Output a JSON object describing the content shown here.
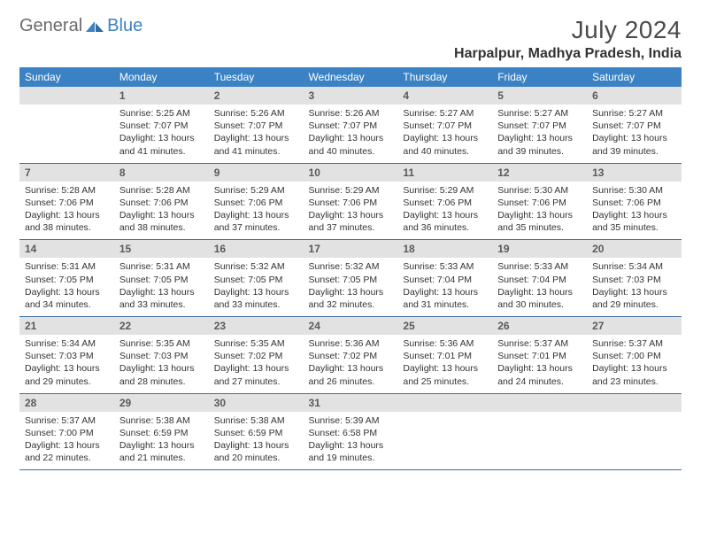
{
  "brand": {
    "part1": "General",
    "part2": "Blue"
  },
  "title": "July 2024",
  "location": "Harpalpur, Madhya Pradesh, India",
  "colors": {
    "header_bg": "#3b82c4",
    "header_text": "#ffffff",
    "daynum_bg": "#e2e2e2",
    "daynum_text": "#5a5a5a",
    "body_text": "#333333",
    "rule": "#3b6fa0",
    "logo_gray": "#6b6b6b",
    "logo_blue": "#3b82c4"
  },
  "weekdays": [
    "Sunday",
    "Monday",
    "Tuesday",
    "Wednesday",
    "Thursday",
    "Friday",
    "Saturday"
  ],
  "weeks": [
    [
      null,
      {
        "n": "1",
        "sr": "Sunrise: 5:25 AM",
        "ss": "Sunset: 7:07 PM",
        "d1": "Daylight: 13 hours",
        "d2": "and 41 minutes."
      },
      {
        "n": "2",
        "sr": "Sunrise: 5:26 AM",
        "ss": "Sunset: 7:07 PM",
        "d1": "Daylight: 13 hours",
        "d2": "and 41 minutes."
      },
      {
        "n": "3",
        "sr": "Sunrise: 5:26 AM",
        "ss": "Sunset: 7:07 PM",
        "d1": "Daylight: 13 hours",
        "d2": "and 40 minutes."
      },
      {
        "n": "4",
        "sr": "Sunrise: 5:27 AM",
        "ss": "Sunset: 7:07 PM",
        "d1": "Daylight: 13 hours",
        "d2": "and 40 minutes."
      },
      {
        "n": "5",
        "sr": "Sunrise: 5:27 AM",
        "ss": "Sunset: 7:07 PM",
        "d1": "Daylight: 13 hours",
        "d2": "and 39 minutes."
      },
      {
        "n": "6",
        "sr": "Sunrise: 5:27 AM",
        "ss": "Sunset: 7:07 PM",
        "d1": "Daylight: 13 hours",
        "d2": "and 39 minutes."
      }
    ],
    [
      {
        "n": "7",
        "sr": "Sunrise: 5:28 AM",
        "ss": "Sunset: 7:06 PM",
        "d1": "Daylight: 13 hours",
        "d2": "and 38 minutes."
      },
      {
        "n": "8",
        "sr": "Sunrise: 5:28 AM",
        "ss": "Sunset: 7:06 PM",
        "d1": "Daylight: 13 hours",
        "d2": "and 38 minutes."
      },
      {
        "n": "9",
        "sr": "Sunrise: 5:29 AM",
        "ss": "Sunset: 7:06 PM",
        "d1": "Daylight: 13 hours",
        "d2": "and 37 minutes."
      },
      {
        "n": "10",
        "sr": "Sunrise: 5:29 AM",
        "ss": "Sunset: 7:06 PM",
        "d1": "Daylight: 13 hours",
        "d2": "and 37 minutes."
      },
      {
        "n": "11",
        "sr": "Sunrise: 5:29 AM",
        "ss": "Sunset: 7:06 PM",
        "d1": "Daylight: 13 hours",
        "d2": "and 36 minutes."
      },
      {
        "n": "12",
        "sr": "Sunrise: 5:30 AM",
        "ss": "Sunset: 7:06 PM",
        "d1": "Daylight: 13 hours",
        "d2": "and 35 minutes."
      },
      {
        "n": "13",
        "sr": "Sunrise: 5:30 AM",
        "ss": "Sunset: 7:06 PM",
        "d1": "Daylight: 13 hours",
        "d2": "and 35 minutes."
      }
    ],
    [
      {
        "n": "14",
        "sr": "Sunrise: 5:31 AM",
        "ss": "Sunset: 7:05 PM",
        "d1": "Daylight: 13 hours",
        "d2": "and 34 minutes."
      },
      {
        "n": "15",
        "sr": "Sunrise: 5:31 AM",
        "ss": "Sunset: 7:05 PM",
        "d1": "Daylight: 13 hours",
        "d2": "and 33 minutes."
      },
      {
        "n": "16",
        "sr": "Sunrise: 5:32 AM",
        "ss": "Sunset: 7:05 PM",
        "d1": "Daylight: 13 hours",
        "d2": "and 33 minutes."
      },
      {
        "n": "17",
        "sr": "Sunrise: 5:32 AM",
        "ss": "Sunset: 7:05 PM",
        "d1": "Daylight: 13 hours",
        "d2": "and 32 minutes."
      },
      {
        "n": "18",
        "sr": "Sunrise: 5:33 AM",
        "ss": "Sunset: 7:04 PM",
        "d1": "Daylight: 13 hours",
        "d2": "and 31 minutes."
      },
      {
        "n": "19",
        "sr": "Sunrise: 5:33 AM",
        "ss": "Sunset: 7:04 PM",
        "d1": "Daylight: 13 hours",
        "d2": "and 30 minutes."
      },
      {
        "n": "20",
        "sr": "Sunrise: 5:34 AM",
        "ss": "Sunset: 7:03 PM",
        "d1": "Daylight: 13 hours",
        "d2": "and 29 minutes."
      }
    ],
    [
      {
        "n": "21",
        "sr": "Sunrise: 5:34 AM",
        "ss": "Sunset: 7:03 PM",
        "d1": "Daylight: 13 hours",
        "d2": "and 29 minutes."
      },
      {
        "n": "22",
        "sr": "Sunrise: 5:35 AM",
        "ss": "Sunset: 7:03 PM",
        "d1": "Daylight: 13 hours",
        "d2": "and 28 minutes."
      },
      {
        "n": "23",
        "sr": "Sunrise: 5:35 AM",
        "ss": "Sunset: 7:02 PM",
        "d1": "Daylight: 13 hours",
        "d2": "and 27 minutes."
      },
      {
        "n": "24",
        "sr": "Sunrise: 5:36 AM",
        "ss": "Sunset: 7:02 PM",
        "d1": "Daylight: 13 hours",
        "d2": "and 26 minutes."
      },
      {
        "n": "25",
        "sr": "Sunrise: 5:36 AM",
        "ss": "Sunset: 7:01 PM",
        "d1": "Daylight: 13 hours",
        "d2": "and 25 minutes."
      },
      {
        "n": "26",
        "sr": "Sunrise: 5:37 AM",
        "ss": "Sunset: 7:01 PM",
        "d1": "Daylight: 13 hours",
        "d2": "and 24 minutes."
      },
      {
        "n": "27",
        "sr": "Sunrise: 5:37 AM",
        "ss": "Sunset: 7:00 PM",
        "d1": "Daylight: 13 hours",
        "d2": "and 23 minutes."
      }
    ],
    [
      {
        "n": "28",
        "sr": "Sunrise: 5:37 AM",
        "ss": "Sunset: 7:00 PM",
        "d1": "Daylight: 13 hours",
        "d2": "and 22 minutes."
      },
      {
        "n": "29",
        "sr": "Sunrise: 5:38 AM",
        "ss": "Sunset: 6:59 PM",
        "d1": "Daylight: 13 hours",
        "d2": "and 21 minutes."
      },
      {
        "n": "30",
        "sr": "Sunrise: 5:38 AM",
        "ss": "Sunset: 6:59 PM",
        "d1": "Daylight: 13 hours",
        "d2": "and 20 minutes."
      },
      {
        "n": "31",
        "sr": "Sunrise: 5:39 AM",
        "ss": "Sunset: 6:58 PM",
        "d1": "Daylight: 13 hours",
        "d2": "and 19 minutes."
      },
      null,
      null,
      null
    ]
  ]
}
